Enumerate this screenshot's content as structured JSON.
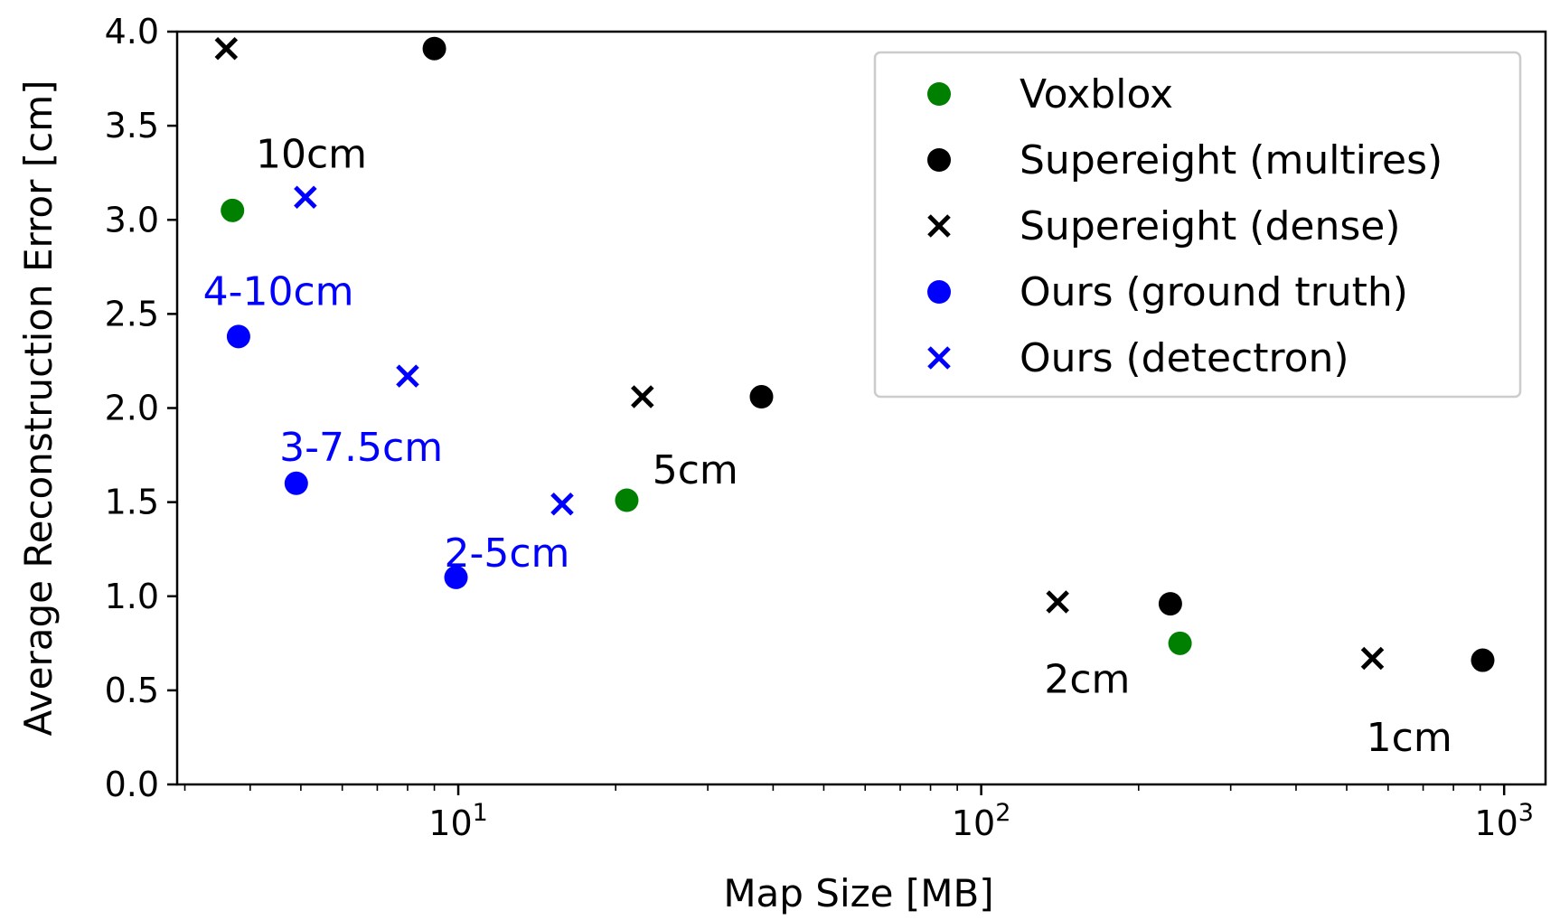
{
  "chart_data": {
    "type": "scatter",
    "title": "",
    "xlabel": "Map Size [MB]",
    "ylabel": "Average Reconstruction Error [cm]",
    "xscale": "log",
    "xlim": [
      2.9,
      1200
    ],
    "ylim": [
      0.0,
      4.0
    ],
    "grid": false,
    "legend_position": "top-right",
    "x_major_ticks": [
      {
        "value": 10,
        "base": "10",
        "exp": "1"
      },
      {
        "value": 100,
        "base": "10",
        "exp": "2"
      },
      {
        "value": 1000,
        "base": "10",
        "exp": "3"
      }
    ],
    "y_ticks": [
      {
        "value": 0.0,
        "label": "0.0"
      },
      {
        "value": 0.5,
        "label": "0.5"
      },
      {
        "value": 1.0,
        "label": "1.0"
      },
      {
        "value": 1.5,
        "label": "1.5"
      },
      {
        "value": 2.0,
        "label": "2.0"
      },
      {
        "value": 2.5,
        "label": "2.5"
      },
      {
        "value": 3.0,
        "label": "3.0"
      },
      {
        "value": 3.5,
        "label": "3.5"
      },
      {
        "value": 4.0,
        "label": "4.0"
      }
    ],
    "series": [
      {
        "name": "Voxblox",
        "marker": "circle",
        "color": "#008000",
        "points": [
          [
            3.7,
            3.05
          ],
          [
            21.0,
            1.51
          ],
          [
            240,
            0.75
          ]
        ]
      },
      {
        "name": "Supereight (multires)",
        "marker": "circle",
        "color": "#000000",
        "points": [
          [
            9.0,
            3.91
          ],
          [
            38.0,
            2.06
          ],
          [
            230,
            0.96
          ],
          [
            910,
            0.66
          ]
        ]
      },
      {
        "name": "Supereight (dense)",
        "marker": "x",
        "color": "#000000",
        "points": [
          [
            3.6,
            3.91
          ],
          [
            22.5,
            2.06
          ],
          [
            140,
            0.97
          ],
          [
            560,
            0.67
          ]
        ]
      },
      {
        "name": "Ours (ground truth)",
        "marker": "circle",
        "color": "#0000ff",
        "points": [
          [
            3.8,
            2.38
          ],
          [
            4.9,
            1.6
          ],
          [
            9.9,
            1.1
          ]
        ]
      },
      {
        "name": "Ours (detectron)",
        "marker": "x",
        "color": "#0000ff",
        "points": [
          [
            5.1,
            3.12
          ],
          [
            8.0,
            2.17
          ],
          [
            15.8,
            1.49
          ]
        ]
      }
    ],
    "annotations": [
      {
        "text": "10cm",
        "x": 4.1,
        "y": 3.35,
        "color": "#000000"
      },
      {
        "text": "4-10cm",
        "x": 3.25,
        "y": 2.62,
        "color": "#0000ff"
      },
      {
        "text": "3-7.5cm",
        "x": 4.55,
        "y": 1.79,
        "color": "#0000ff"
      },
      {
        "text": "2-5cm",
        "x": 9.4,
        "y": 1.23,
        "color": "#0000ff"
      },
      {
        "text": "5cm",
        "x": 23.5,
        "y": 1.67,
        "color": "#000000"
      },
      {
        "text": "2cm",
        "x": 132,
        "y": 0.56,
        "color": "#000000"
      },
      {
        "text": "1cm",
        "x": 545,
        "y": 0.25,
        "color": "#000000"
      }
    ]
  }
}
